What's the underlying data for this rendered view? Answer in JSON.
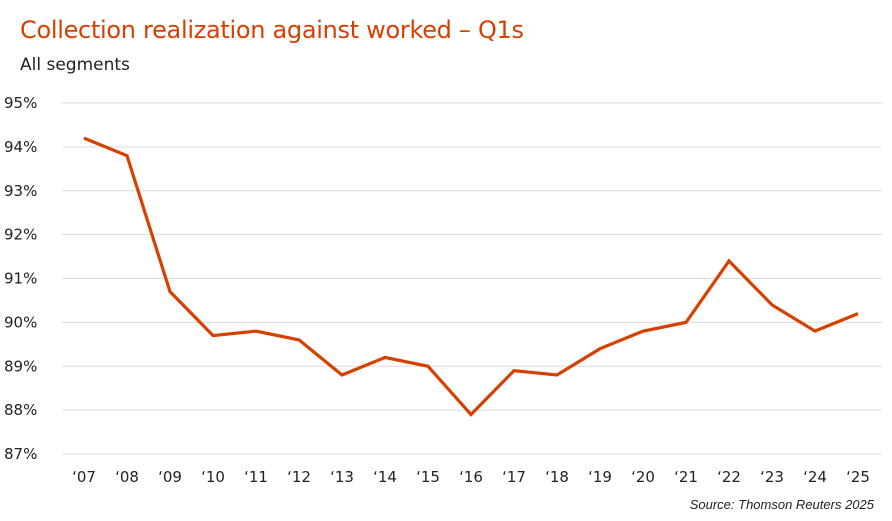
{
  "chart_data": {
    "type": "line",
    "title": "Collection realization against worked – Q1s",
    "subtitle": "All segments",
    "source": "Source: Thomson Reuters 2025",
    "xlabel": "",
    "ylabel": "",
    "categories": [
      "‘07",
      "‘08",
      "‘09",
      "‘10",
      "‘11",
      "‘12",
      "‘13",
      "‘14",
      "‘15",
      "‘16",
      "‘17",
      "‘18",
      "‘19",
      "‘20",
      "‘21",
      "‘22",
      "‘23",
      "‘24",
      "‘25"
    ],
    "series": [
      {
        "name": "Collection realization",
        "color": "#D64000",
        "values": [
          94.2,
          93.8,
          90.7,
          89.7,
          89.8,
          89.6,
          88.8,
          89.2,
          89.0,
          87.9,
          88.9,
          88.8,
          89.4,
          89.8,
          90.0,
          91.4,
          90.4,
          89.8,
          90.2
        ]
      }
    ],
    "ylim": [
      87,
      95
    ],
    "yticks": [
      95,
      94,
      93,
      92,
      91,
      90,
      89,
      88,
      87
    ],
    "ytick_labels": [
      "95%",
      "94%",
      "93%",
      "92%",
      "91%",
      "90%",
      "89%",
      "88%",
      "87%"
    ],
    "grid": true,
    "legend": "none"
  }
}
